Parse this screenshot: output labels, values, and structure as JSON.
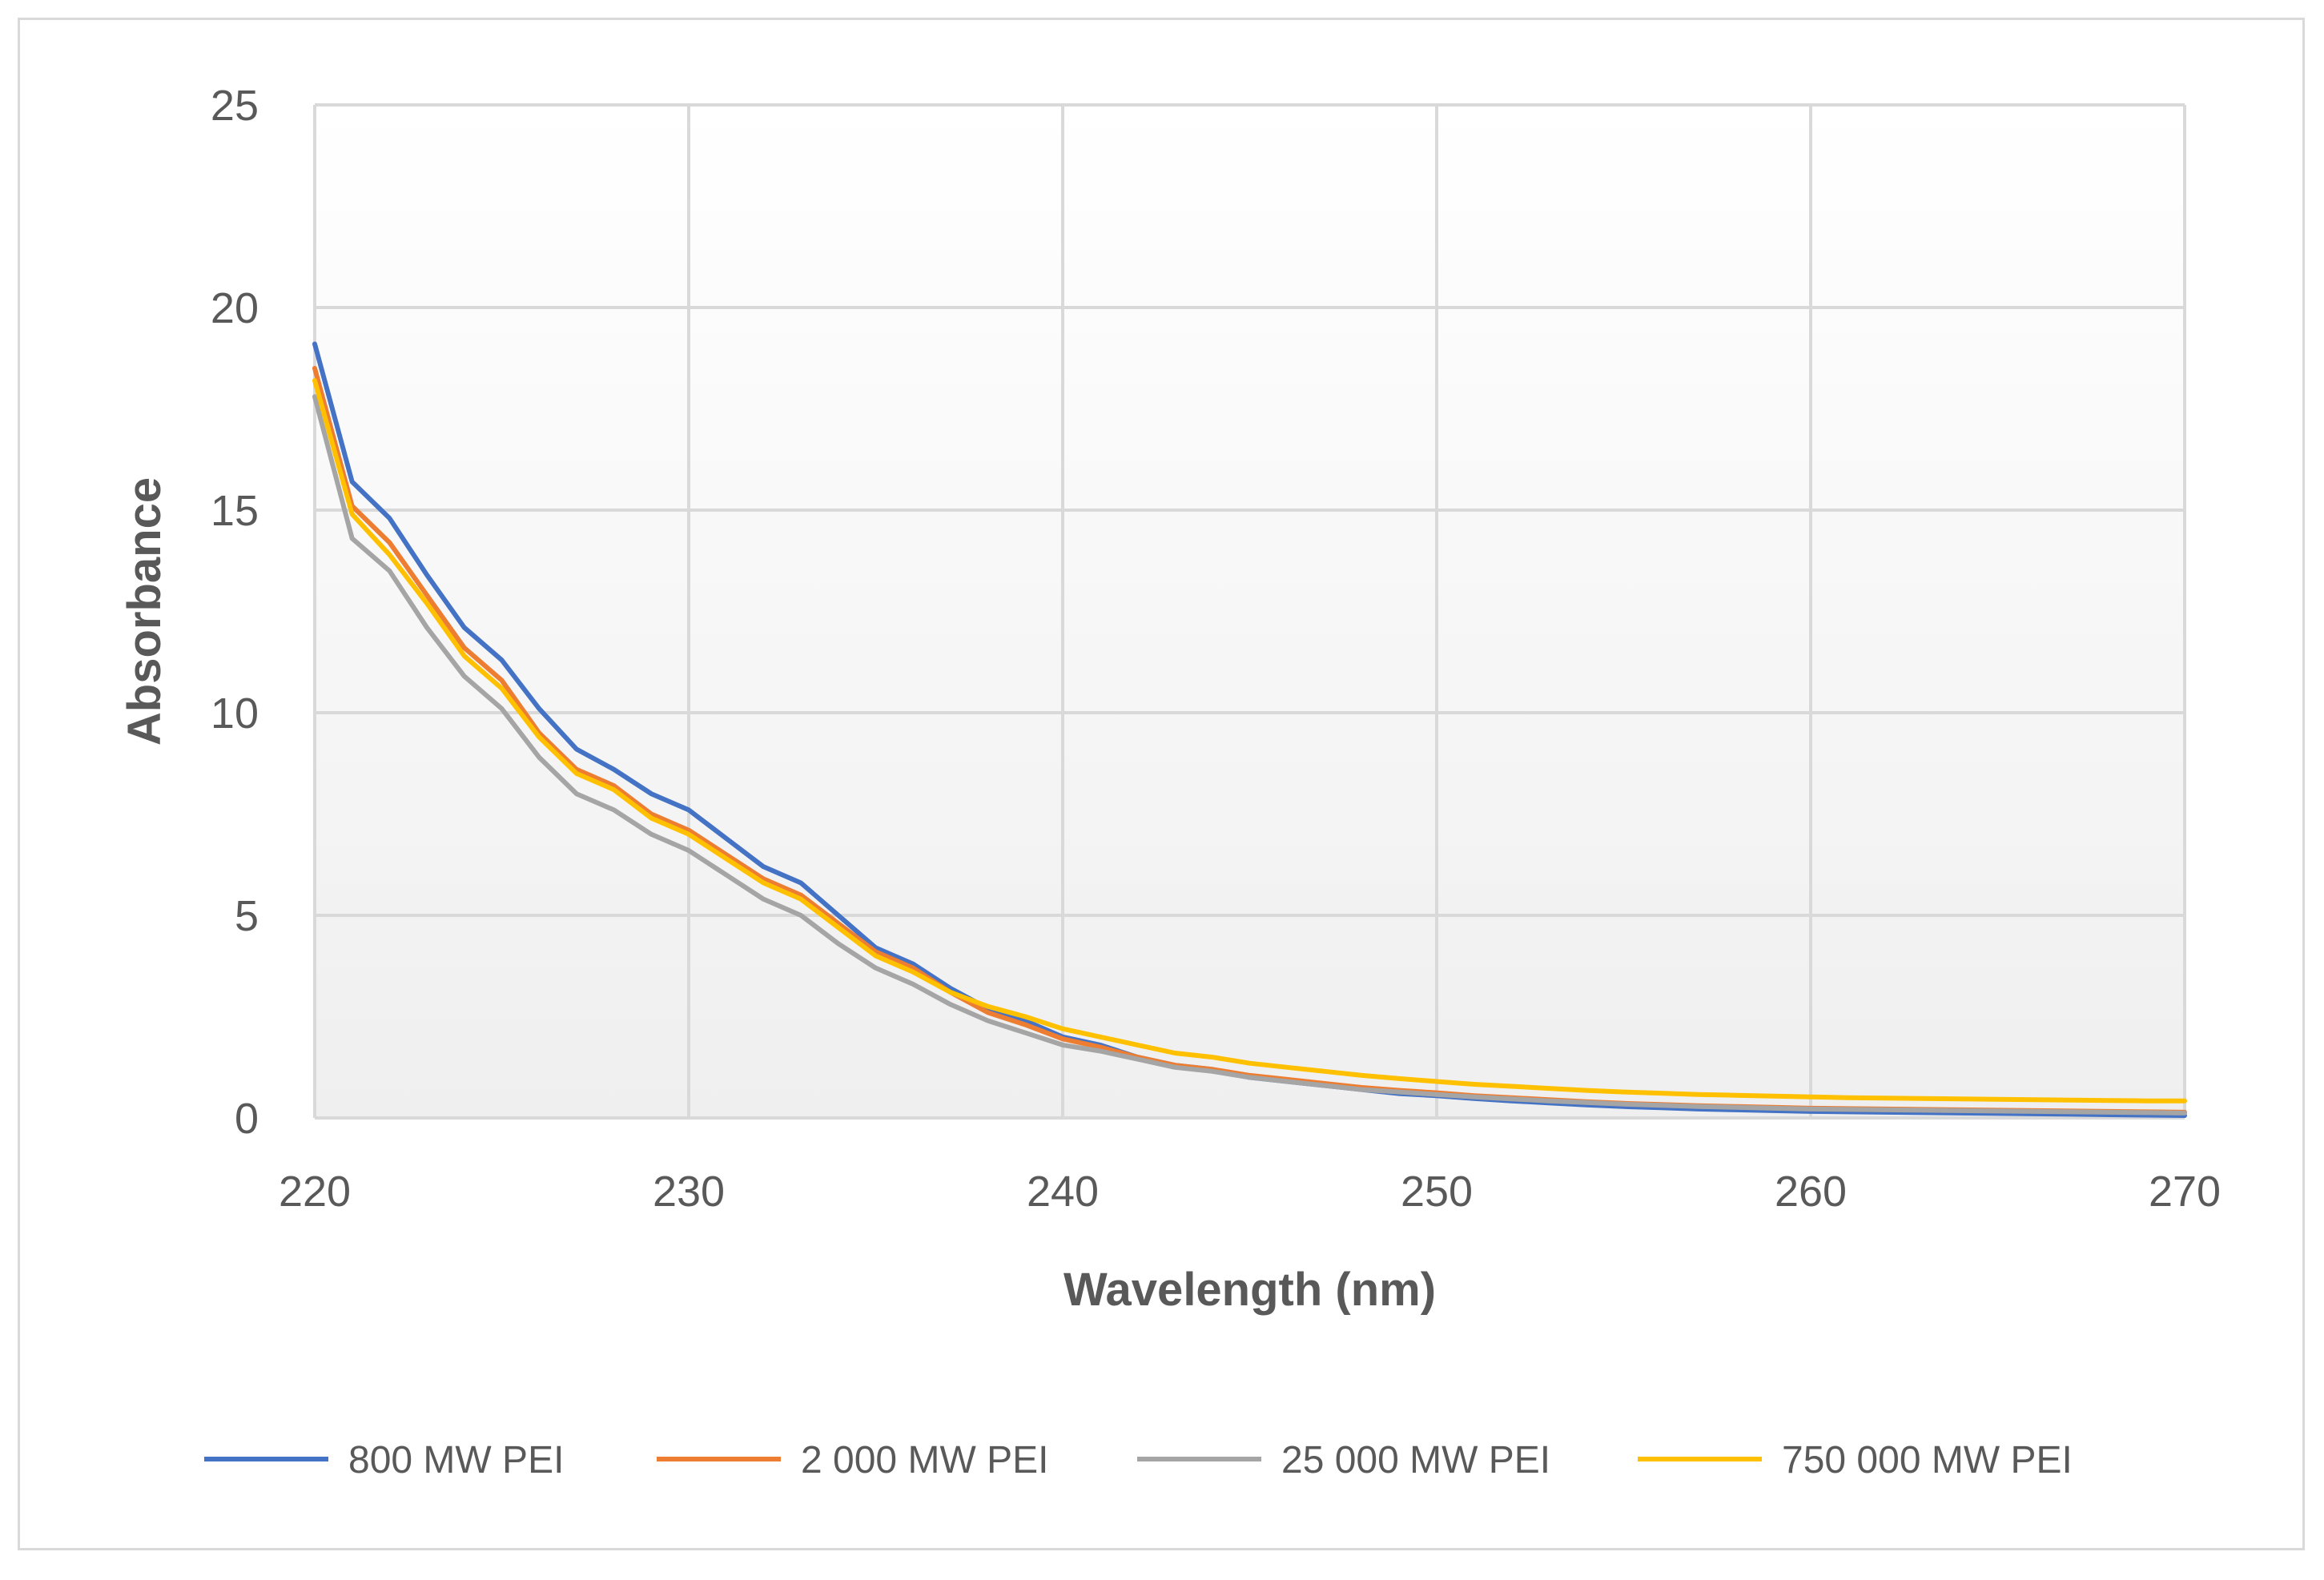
{
  "chart_data": {
    "type": "line",
    "title": "",
    "xlabel": "Wavelength (nm)",
    "ylabel": "Absorbance",
    "xlim": [
      220,
      270
    ],
    "ylim": [
      0,
      25
    ],
    "xticks": [
      220,
      230,
      240,
      250,
      260,
      270
    ],
    "yticks": [
      0,
      5,
      10,
      15,
      20,
      25
    ],
    "grid": true,
    "legend_position": "bottom",
    "x": [
      220,
      221,
      222,
      223,
      224,
      225,
      226,
      227,
      228,
      229,
      230,
      231,
      232,
      233,
      234,
      235,
      236,
      237,
      238,
      239,
      240,
      241,
      242,
      243,
      244,
      245,
      246,
      247,
      248,
      249,
      250,
      251,
      252,
      253,
      254,
      255,
      256,
      257,
      258,
      259,
      260,
      261,
      262,
      263,
      264,
      265,
      266,
      267,
      268,
      269,
      270
    ],
    "series": [
      {
        "name": "800 MW PEI",
        "color": "#4472c4",
        "values": [
          19.1,
          15.7,
          14.8,
          13.4,
          12.1,
          11.3,
          10.1,
          9.1,
          8.6,
          8.0,
          7.6,
          6.9,
          6.2,
          5.8,
          5.0,
          4.2,
          3.8,
          3.2,
          2.7,
          2.4,
          2.0,
          1.8,
          1.5,
          1.3,
          1.2,
          1.0,
          0.9,
          0.8,
          0.7,
          0.6,
          0.55,
          0.48,
          0.42,
          0.37,
          0.32,
          0.28,
          0.25,
          0.22,
          0.2,
          0.18,
          0.16,
          0.15,
          0.14,
          0.13,
          0.12,
          0.11,
          0.1,
          0.09,
          0.08,
          0.07,
          0.06
        ]
      },
      {
        "name": "2 000 MW PEI",
        "color": "#ed7d31",
        "values": [
          18.5,
          15.1,
          14.2,
          12.9,
          11.6,
          10.8,
          9.5,
          8.6,
          8.2,
          7.5,
          7.1,
          6.5,
          5.9,
          5.5,
          4.8,
          4.1,
          3.7,
          3.1,
          2.6,
          2.3,
          1.95,
          1.75,
          1.5,
          1.3,
          1.2,
          1.05,
          0.95,
          0.85,
          0.75,
          0.68,
          0.62,
          0.55,
          0.5,
          0.45,
          0.4,
          0.36,
          0.33,
          0.3,
          0.28,
          0.26,
          0.24,
          0.23,
          0.22,
          0.21,
          0.2,
          0.19,
          0.18,
          0.17,
          0.16,
          0.15,
          0.14
        ]
      },
      {
        "name": "25 000 MW PEI",
        "color": "#a5a5a5",
        "values": [
          17.8,
          14.3,
          13.5,
          12.1,
          10.9,
          10.1,
          8.9,
          8.0,
          7.6,
          7.0,
          6.6,
          6.0,
          5.4,
          5.0,
          4.3,
          3.7,
          3.3,
          2.8,
          2.4,
          2.1,
          1.8,
          1.65,
          1.45,
          1.25,
          1.15,
          1.0,
          0.9,
          0.8,
          0.7,
          0.64,
          0.58,
          0.52,
          0.47,
          0.42,
          0.38,
          0.34,
          0.31,
          0.28,
          0.26,
          0.24,
          0.22,
          0.21,
          0.2,
          0.19,
          0.18,
          0.17,
          0.16,
          0.15,
          0.14,
          0.13,
          0.12
        ]
      },
      {
        "name": "750 000 MW PEI",
        "color": "#ffc000",
        "values": [
          18.2,
          14.9,
          13.9,
          12.7,
          11.4,
          10.6,
          9.4,
          8.5,
          8.1,
          7.4,
          7.0,
          6.4,
          5.8,
          5.4,
          4.7,
          4.0,
          3.6,
          3.1,
          2.75,
          2.5,
          2.2,
          2.0,
          1.8,
          1.6,
          1.5,
          1.35,
          1.25,
          1.15,
          1.05,
          0.97,
          0.9,
          0.83,
          0.78,
          0.73,
          0.68,
          0.64,
          0.61,
          0.58,
          0.56,
          0.54,
          0.52,
          0.5,
          0.49,
          0.48,
          0.47,
          0.46,
          0.45,
          0.44,
          0.43,
          0.42,
          0.42
        ]
      }
    ]
  }
}
